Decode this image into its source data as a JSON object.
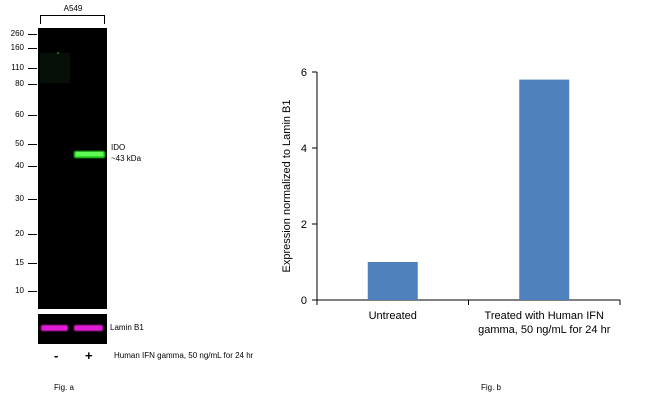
{
  "figure_a": {
    "cell_line": "A549",
    "mw_markers": [
      "260",
      "160",
      "110",
      "80",
      "60",
      "50",
      "40",
      "30",
      "20",
      "15",
      "10"
    ],
    "band_label_line1": "IDO",
    "band_label_line2": "~43 kDa",
    "loading_control_label": "Lamin B1",
    "lane_minus": "-",
    "lane_plus": "+",
    "treatment_label": "Human IFN gamma, 50 ng/mL for 24 hr",
    "caption": "Fig. a",
    "colors": {
      "band": "#2ee62a",
      "lamin": "#e21ad6",
      "background": "#000000"
    }
  },
  "figure_b": {
    "caption": "Fig. b"
  },
  "chart_data": {
    "type": "bar",
    "categories": [
      "Untreated",
      "Treated with Human IFN gamma, 50 ng/mL for 24 hr"
    ],
    "category_lines": [
      [
        "Untreated"
      ],
      [
        "Treated with Human IFN",
        "gamma, 50 ng/mL for 24 hr"
      ]
    ],
    "values": [
      1.0,
      5.8
    ],
    "ylabel": "Expression normalized to Lamin B1",
    "xlabel": "",
    "ylim": [
      0,
      6
    ],
    "yticks": [
      0,
      2,
      4,
      6
    ],
    "grid": false,
    "bar_color": "#4f81bd"
  }
}
